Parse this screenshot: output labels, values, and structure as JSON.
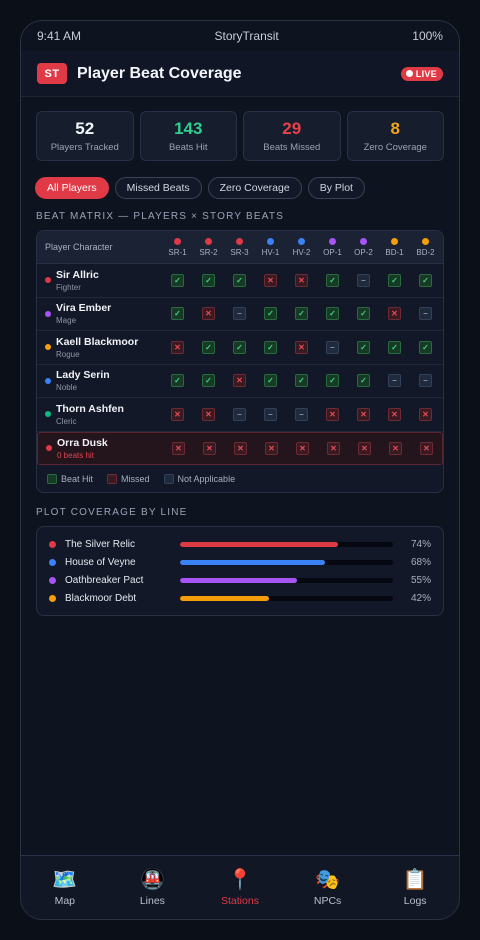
{
  "statusbar": {
    "time": "9:41 AM",
    "app": "StoryTransit",
    "battery": "100%"
  },
  "header": {
    "logo": "ST",
    "title": "Player Beat Coverage",
    "live": "LIVE"
  },
  "stats": [
    {
      "value": "52",
      "label": "Players Tracked",
      "color": "#f3f5fa"
    },
    {
      "value": "143",
      "label": "Beats Hit",
      "color": "#2ecf8f"
    },
    {
      "value": "29",
      "label": "Beats Missed",
      "color": "#e8404c"
    },
    {
      "value": "8",
      "label": "Zero Coverage",
      "color": "#f0a51e"
    }
  ],
  "filters": [
    "All Players",
    "Missed Beats",
    "Zero Coverage",
    "By Plot"
  ],
  "matrix": {
    "section_title": "BEAT MATRIX — PLAYERS × STORY BEATS",
    "player_header": "Player Character",
    "beats": [
      {
        "label": "SR-1",
        "color": "#e03a46"
      },
      {
        "label": "SR-2",
        "color": "#e03a46"
      },
      {
        "label": "SR-3",
        "color": "#e03a46"
      },
      {
        "label": "HV-1",
        "color": "#3b82f6"
      },
      {
        "label": "HV-2",
        "color": "#3b82f6"
      },
      {
        "label": "OP-1",
        "color": "#a855f7"
      },
      {
        "label": "OP-2",
        "color": "#a855f7"
      },
      {
        "label": "BD-1",
        "color": "#f59e0b"
      },
      {
        "label": "BD-2",
        "color": "#f59e0b"
      }
    ],
    "rows": [
      {
        "name": "Sir Allric",
        "class": "Fighter",
        "color": "#e03a46",
        "cells": [
          "hit",
          "hit",
          "hit",
          "miss",
          "miss",
          "hit",
          "na",
          "hit",
          "hit"
        ]
      },
      {
        "name": "Vira Ember",
        "class": "Mage",
        "color": "#a855f7",
        "cells": [
          "hit",
          "miss",
          "na",
          "hit",
          "hit",
          "hit",
          "hit",
          "miss",
          "na"
        ]
      },
      {
        "name": "Kaell Blackmoor",
        "class": "Rogue",
        "color": "#f59e0b",
        "cells": [
          "miss",
          "hit",
          "hit",
          "hit",
          "miss",
          "na",
          "hit",
          "hit",
          "hit"
        ]
      },
      {
        "name": "Lady Serin",
        "class": "Noble",
        "color": "#3b82f6",
        "cells": [
          "hit",
          "hit",
          "miss",
          "hit",
          "hit",
          "hit",
          "hit",
          "na",
          "na"
        ]
      },
      {
        "name": "Thorn Ashfen",
        "class": "Cleric",
        "color": "#10b981",
        "cells": [
          "miss",
          "miss",
          "na",
          "na",
          "na",
          "miss",
          "miss",
          "miss",
          "miss"
        ]
      },
      {
        "name": "Orra Dusk",
        "class": "0 beats hit",
        "color": "#e03a46",
        "alert": true,
        "cells": [
          "miss",
          "miss",
          "miss",
          "miss",
          "miss",
          "miss",
          "miss",
          "miss",
          "miss"
        ]
      }
    ],
    "symbols": {
      "hit": "✓",
      "miss": "✕",
      "na": "–"
    },
    "legend": {
      "hit": "Beat Hit",
      "miss": "Missed",
      "na": "Not Applicable"
    }
  },
  "plot": {
    "section_title": "PLOT COVERAGE BY LINE",
    "lines": [
      {
        "name": "The Silver Relic",
        "pct": 74,
        "label": "74%",
        "color": "#e03a46"
      },
      {
        "name": "House of Veyne",
        "pct": 68,
        "label": "68%",
        "color": "#3b82f6"
      },
      {
        "name": "Oathbreaker Pact",
        "pct": 55,
        "label": "55%",
        "color": "#a855f7"
      },
      {
        "name": "Blackmoor Debt",
        "pct": 42,
        "label": "42%",
        "color": "#f59e0b"
      }
    ]
  },
  "tabs": [
    {
      "label": "Map",
      "icon": "🗺️",
      "icon_name": "map-icon"
    },
    {
      "label": "Lines",
      "icon": "🚇",
      "icon_name": "metro-icon"
    },
    {
      "label": "Stations",
      "icon": "📍",
      "icon_name": "pin-icon",
      "active": true
    },
    {
      "label": "NPCs",
      "icon": "🎭",
      "icon_name": "masks-icon"
    },
    {
      "label": "Logs",
      "icon": "📋",
      "icon_name": "clipboard-icon"
    }
  ]
}
